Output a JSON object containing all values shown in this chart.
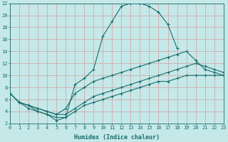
{
  "xlabel": "Humidex (Indice chaleur)",
  "bg_color": "#c5e8e8",
  "line_color": "#1a6e6e",
  "grid_color": "#aad4d4",
  "xlim": [
    0,
    23
  ],
  "ylim": [
    2,
    22
  ],
  "xticks": [
    0,
    1,
    2,
    3,
    4,
    5,
    6,
    7,
    8,
    9,
    10,
    11,
    12,
    13,
    14,
    15,
    16,
    17,
    18,
    19,
    20,
    21,
    22,
    23
  ],
  "yticks": [
    2,
    4,
    6,
    8,
    10,
    12,
    14,
    16,
    18,
    20,
    22
  ],
  "series": [
    {
      "x": [
        0,
        1,
        2,
        3,
        4,
        5,
        6,
        7,
        8,
        9,
        10,
        11,
        12,
        13,
        14,
        15,
        16,
        17,
        18,
        19,
        20,
        21,
        22,
        23
      ],
      "y": [
        7,
        5.5,
        5,
        4,
        3.5,
        2.5,
        3,
        8.5,
        9.5,
        11,
        16.5,
        19,
        21.5,
        22,
        22,
        21.5,
        20.5,
        18.5,
        14.5,
        null,
        null,
        null,
        null,
        null
      ]
    },
    {
      "x": [
        0,
        1,
        2,
        3,
        4,
        5,
        6,
        7,
        8,
        9,
        10,
        11,
        12,
        13,
        14,
        15,
        16,
        17,
        18,
        19,
        20,
        21,
        22,
        23
      ],
      "y": [
        7,
        5.5,
        5,
        4.5,
        4,
        3.5,
        4.5,
        7,
        8,
        9,
        9.5,
        10,
        10.5,
        11,
        11.5,
        12,
        12.5,
        13,
        13.5,
        14,
        12.5,
        11,
        10.5,
        10
      ]
    },
    {
      "x": [
        0,
        1,
        2,
        3,
        4,
        5,
        6,
        7,
        8,
        9,
        10,
        11,
        12,
        13,
        14,
        15,
        16,
        17,
        18,
        19,
        20,
        21,
        22,
        23
      ],
      "y": [
        7,
        5.5,
        5,
        4.5,
        4,
        3.5,
        3.5,
        4.5,
        5.5,
        6.5,
        7,
        7.5,
        8,
        8.5,
        9,
        9.5,
        10,
        10.5,
        11,
        11.5,
        12,
        11.5,
        11,
        10.5
      ]
    },
    {
      "x": [
        0,
        1,
        2,
        3,
        4,
        5,
        6,
        7,
        8,
        9,
        10,
        11,
        12,
        13,
        14,
        15,
        16,
        17,
        18,
        19,
        20,
        21,
        22,
        23
      ],
      "y": [
        7,
        5.5,
        4.5,
        4,
        3.5,
        3,
        3,
        4,
        5,
        5.5,
        6,
        6.5,
        7,
        7.5,
        8,
        8.5,
        9,
        9,
        9.5,
        10,
        10,
        10,
        10,
        10
      ]
    }
  ]
}
